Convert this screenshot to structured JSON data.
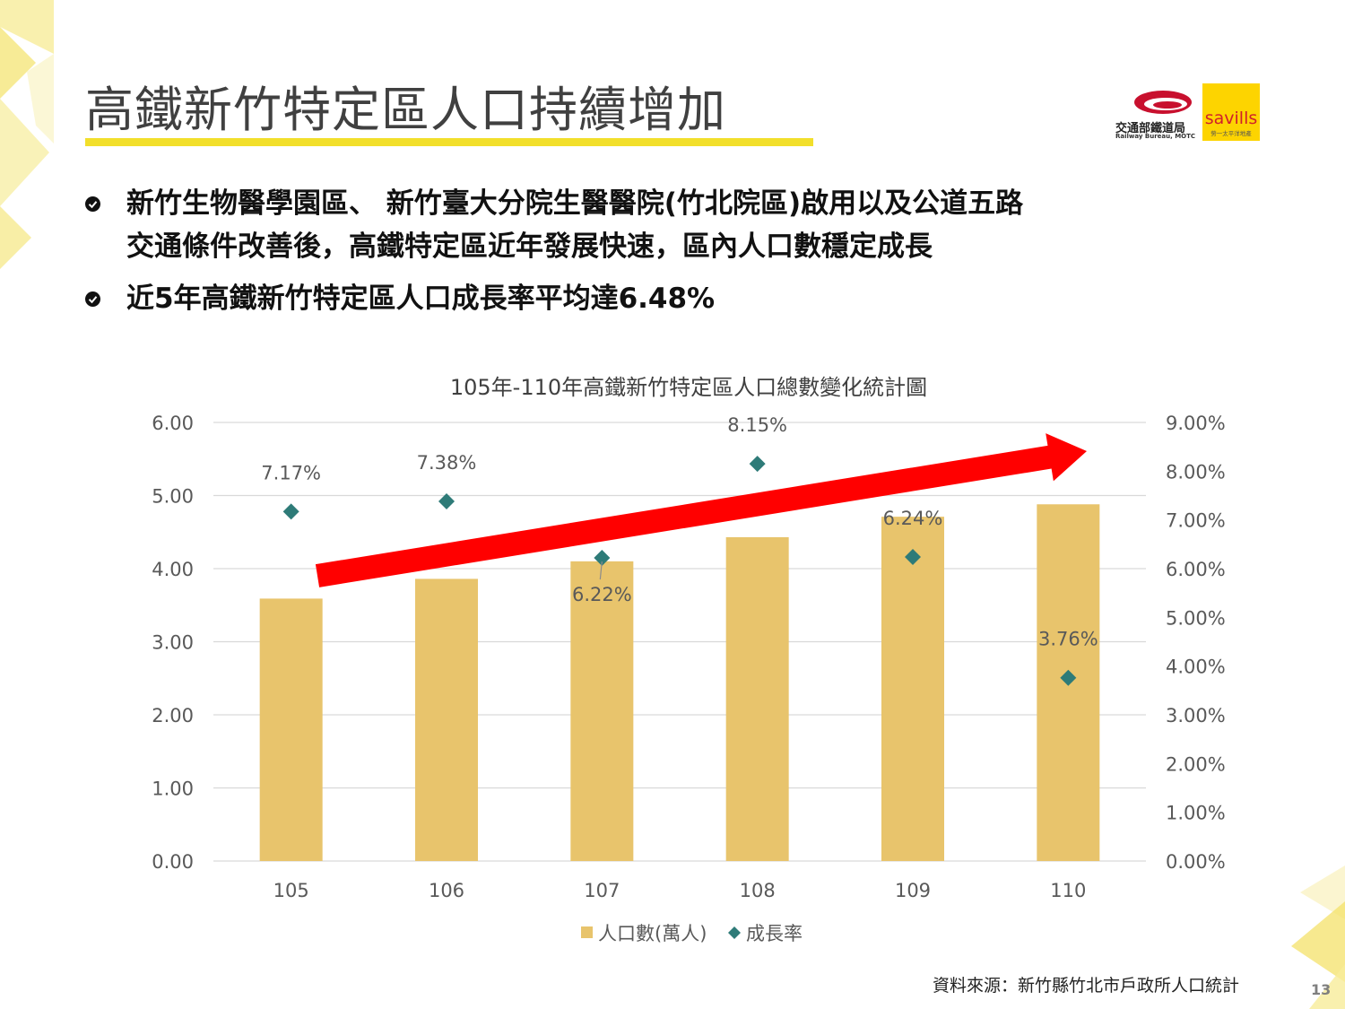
{
  "slide": {
    "title": "高鐵新竹特定區人口持續增加",
    "bullets": [
      [
        "新竹生物醫學園區、 新竹臺大分院生醫醫院(竹北院區)啟用以及公道五路",
        "交通條件改善後，高鐵特定區近年發展快速，區內人口數穩定成長"
      ],
      [
        "近5年高鐵新竹特定區人口成長率平均達6.48%"
      ]
    ],
    "source": "資料來源：新竹縣竹北市戶政所人口統計",
    "page_number": "13",
    "logos": {
      "railway_name": "交通部鐵道局",
      "railway_sub": "Railway Bureau, MOTC",
      "savills_brand": "savills",
      "savills_tag": "勞一太平洋地產"
    },
    "accent_color": "#f2df2b"
  },
  "chart_data": {
    "type": "bar",
    "title": "105年-110年高鐵新竹特定區人口總數變化統計圖",
    "categories": [
      "105",
      "106",
      "107",
      "108",
      "109",
      "110"
    ],
    "series": [
      {
        "name": "人口數(萬人)",
        "kind": "bar",
        "axis": "left",
        "values": [
          3.59,
          3.86,
          4.1,
          4.43,
          4.71,
          4.88
        ],
        "color": "#e8c46c"
      },
      {
        "name": "成長率",
        "kind": "scatter",
        "axis": "right",
        "values": [
          7.17,
          7.38,
          6.22,
          8.15,
          6.24,
          3.76
        ],
        "labels": [
          "7.17%",
          "7.38%",
          "6.22%",
          "8.15%",
          "6.24%",
          "3.76%"
        ],
        "color": "#2e7b78"
      }
    ],
    "left_axis": {
      "ylim": [
        0,
        6
      ],
      "ticks": [
        "0.00",
        "1.00",
        "2.00",
        "3.00",
        "4.00",
        "5.00",
        "6.00"
      ]
    },
    "right_axis": {
      "ylim": [
        0,
        9
      ],
      "ticks": [
        "0.00%",
        "1.00%",
        "2.00%",
        "3.00%",
        "4.00%",
        "5.00%",
        "6.00%",
        "7.00%",
        "8.00%",
        "9.00%"
      ]
    },
    "grid": true,
    "legend": "bottom",
    "annotation": {
      "shape": "arrow",
      "color": "#ff0000"
    }
  }
}
